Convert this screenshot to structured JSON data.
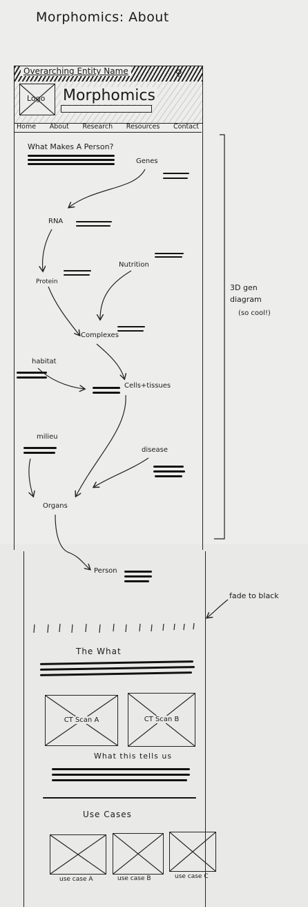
{
  "page_title": "Morphomics: About",
  "header": {
    "entity_name": "Overarching Entity Name",
    "search_icon": "search-icon",
    "logo_label": "Logo",
    "brand": "Morphomics"
  },
  "nav": [
    "Home",
    "About",
    "Research",
    "Resources",
    "Contact"
  ],
  "hero": {
    "heading": "What Makes A Person?",
    "nodes": {
      "genes": "Genes",
      "rna": "RNA",
      "nutrition": "Nutrition",
      "protein": "Protein",
      "complexes": "Complexes",
      "habitat": "habitat",
      "cells": "Cells+tissues",
      "milieu": "milieu",
      "disease": "disease",
      "organs": "Organs",
      "person": "Person"
    }
  },
  "annotations": {
    "diagram_note_1": "3D gen",
    "diagram_note_2": "diagram",
    "diagram_note_3": "(so cool!)",
    "fade": "fade to black"
  },
  "what": {
    "heading": "The What",
    "scan_a": "CT Scan A",
    "scan_b": "CT Scan B",
    "tells_heading": "What this tells us"
  },
  "use_cases": {
    "heading": "Use Cases",
    "items": [
      "use case A",
      "use case B",
      "use case C"
    ]
  }
}
